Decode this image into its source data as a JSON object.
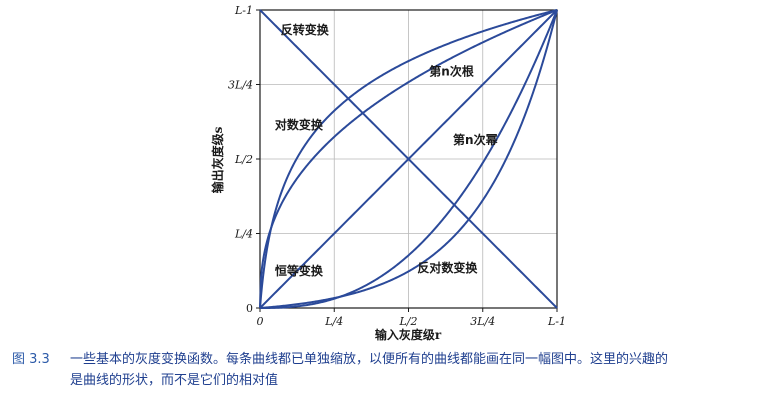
{
  "chart_data": {
    "type": "line",
    "xlabel": "输入灰度级r",
    "ylabel": "输出灰度级s",
    "x_ticks": [
      "0",
      "L/4",
      "L/2",
      "3L/4",
      "L-1"
    ],
    "y_ticks": [
      "0",
      "L/4",
      "L/2",
      "3L/4",
      "L-1"
    ],
    "xlim": [
      0,
      1
    ],
    "ylim": [
      0,
      1
    ],
    "grid": true,
    "colors": {
      "curve": "#2b4a9a",
      "axis": "#1a1a1a",
      "grid": "#b8b8b8"
    },
    "series": [
      {
        "name": "反转变换",
        "function": "negative"
      },
      {
        "name": "对数变换",
        "function": "log"
      },
      {
        "name": "第n次根",
        "function": "nth-root"
      },
      {
        "name": "第n次幂",
        "function": "nth-power"
      },
      {
        "name": "恒等变换",
        "function": "identity"
      },
      {
        "name": "反对数变换",
        "function": "inverse-log"
      }
    ],
    "labels": [
      {
        "text": "反转变换",
        "x": 0.07,
        "y": 0.92
      },
      {
        "text": "对数变换",
        "x": 0.05,
        "y": 0.6
      },
      {
        "text": "第n次根",
        "x": 0.57,
        "y": 0.78
      },
      {
        "text": "第n次幂",
        "x": 0.65,
        "y": 0.55
      },
      {
        "text": "恒等变换",
        "x": 0.05,
        "y": 0.11
      },
      {
        "text": "反对数变换",
        "x": 0.53,
        "y": 0.12
      }
    ]
  },
  "caption": {
    "figure_number": "图 3.3",
    "line1": "一些基本的灰度变换函数。每条曲线都已单独缩放，以便所有的曲线都能画在同一幅图中。这里的兴趣的",
    "line2": "是曲线的形状，而不是它们的相对值"
  }
}
